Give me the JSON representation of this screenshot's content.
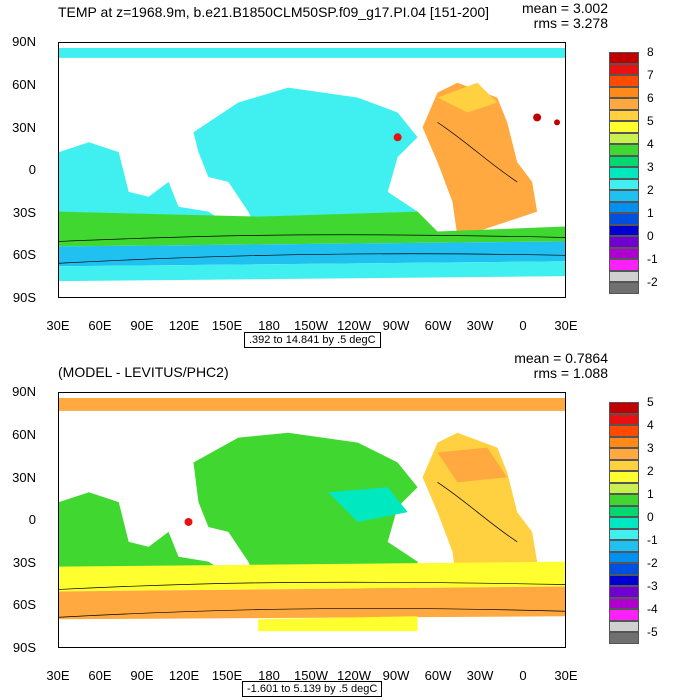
{
  "top": {
    "title": "TEMP at z=1968.9m, b.e21.B1850CLM50SP.f09_g17.PI.04 [151-200]",
    "mean": "mean = 3.002",
    "rms": "rms = 3.278",
    "range": ".392 to 14.841 by .5 degC",
    "colorbar_labels": [
      "8",
      "7",
      "6",
      "5",
      "4",
      "3",
      "2",
      "1",
      "0",
      "-1",
      "-2"
    ],
    "colorbar_colors": [
      "#c00000",
      "#e81010",
      "#ff4a00",
      "#ff8a1a",
      "#ffa940",
      "#ffd040",
      "#ffff30",
      "#c8f050",
      "#40d830",
      "#00d870",
      "#00e8c0",
      "#40f0f0",
      "#20c0f0",
      "#0090f0",
      "#0050e0",
      "#0000d0",
      "#7000d0",
      "#b000d0",
      "#ff20ff",
      "#d0d0d0",
      "#707070"
    ]
  },
  "bottom": {
    "title": "(MODEL - LEVITUS/PHC2)",
    "mean": "mean = 0.7864",
    "rms": "rms = 1.088",
    "range": "-1.601 to 5.139 by .5 degC",
    "colorbar_labels": [
      "5",
      "4",
      "3",
      "2",
      "1",
      "0",
      "-1",
      "-2",
      "-3",
      "-4",
      "-5"
    ],
    "colorbar_colors": [
      "#c00000",
      "#e81010",
      "#ff4a00",
      "#ff8a1a",
      "#ffa940",
      "#ffd040",
      "#ffff30",
      "#c8f050",
      "#40d830",
      "#00d870",
      "#00e8c0",
      "#40f0f0",
      "#20c0f0",
      "#0090f0",
      "#0050e0",
      "#0000d0",
      "#7000d0",
      "#b000d0",
      "#ff20ff",
      "#d0d0d0",
      "#707070"
    ]
  },
  "lat_labels": [
    "90N",
    "60N",
    "30N",
    "0",
    "30S",
    "60S",
    "90S"
  ],
  "lon_labels": [
    "30E",
    "60E",
    "90E",
    "120E",
    "150E",
    "180",
    "150W",
    "120W",
    "90W",
    "60W",
    "30W",
    "0",
    "30E"
  ]
}
